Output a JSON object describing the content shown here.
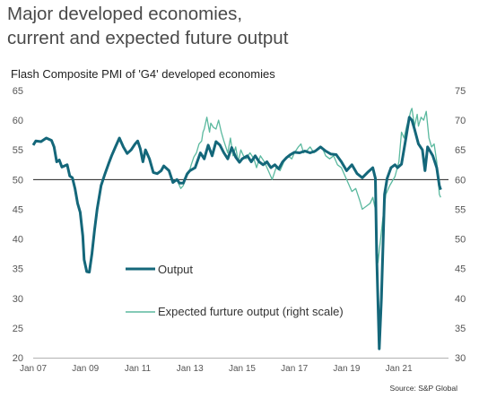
{
  "header": {
    "title_line1": "Major developed economies,",
    "title_line2": "current and expected future output"
  },
  "chart_data": {
    "type": "line",
    "title": "Flash Composite PMI of 'G4' developed economies",
    "source": "Source: S&P Global",
    "x_ticks": [
      "Jan 07",
      "Jan 09",
      "Jan 11",
      "Jan 13",
      "Jan 15",
      "Jan 17",
      "Jan 19",
      "Jan 21"
    ],
    "x_range": [
      2007.0,
      2022.9
    ],
    "left_axis": {
      "range": [
        20,
        65
      ],
      "ticks": [
        20,
        25,
        30,
        35,
        40,
        45,
        50,
        55,
        60,
        65
      ]
    },
    "right_axis": {
      "range": [
        30,
        75
      ],
      "ticks": [
        30,
        35,
        40,
        45,
        50,
        55,
        60,
        65,
        70,
        75
      ]
    },
    "reference_line": {
      "axis": "left",
      "value": 50
    },
    "colors": {
      "output": "#14677a",
      "expected": "#5bb99f",
      "reference": "#222222"
    },
    "series": [
      {
        "name": "Output",
        "axis": "left",
        "points": [
          [
            2007.0,
            55.8
          ],
          [
            2007.1,
            56.5
          ],
          [
            2007.3,
            56.4
          ],
          [
            2007.5,
            57.0
          ],
          [
            2007.7,
            56.6
          ],
          [
            2007.8,
            55.5
          ],
          [
            2007.9,
            53.0
          ],
          [
            2008.0,
            53.3
          ],
          [
            2008.1,
            52.1
          ],
          [
            2008.3,
            52.5
          ],
          [
            2008.4,
            50.6
          ],
          [
            2008.5,
            50.3
          ],
          [
            2008.6,
            48.5
          ],
          [
            2008.7,
            46.0
          ],
          [
            2008.8,
            44.5
          ],
          [
            2008.9,
            40.5
          ],
          [
            2008.95,
            36.5
          ],
          [
            2009.05,
            34.5
          ],
          [
            2009.15,
            34.4
          ],
          [
            2009.25,
            37.5
          ],
          [
            2009.35,
            41.5
          ],
          [
            2009.45,
            45.0
          ],
          [
            2009.6,
            49.0
          ],
          [
            2009.75,
            51.0
          ],
          [
            2009.9,
            52.8
          ],
          [
            2010.0,
            54.0
          ],
          [
            2010.15,
            55.5
          ],
          [
            2010.3,
            57.0
          ],
          [
            2010.45,
            55.5
          ],
          [
            2010.6,
            54.4
          ],
          [
            2010.75,
            55.0
          ],
          [
            2010.9,
            56.0
          ],
          [
            2011.0,
            56.5
          ],
          [
            2011.1,
            55.2
          ],
          [
            2011.2,
            53.0
          ],
          [
            2011.3,
            55.0
          ],
          [
            2011.45,
            53.5
          ],
          [
            2011.6,
            51.2
          ],
          [
            2011.75,
            51.0
          ],
          [
            2011.9,
            51.5
          ],
          [
            2012.0,
            52.3
          ],
          [
            2012.2,
            51.5
          ],
          [
            2012.35,
            49.5
          ],
          [
            2012.5,
            50.0
          ],
          [
            2012.6,
            49.4
          ],
          [
            2012.75,
            49.4
          ],
          [
            2012.9,
            51.0
          ],
          [
            2013.0,
            51.5
          ],
          [
            2013.2,
            52.0
          ],
          [
            2013.4,
            54.5
          ],
          [
            2013.55,
            53.5
          ],
          [
            2013.7,
            55.8
          ],
          [
            2013.85,
            54.0
          ],
          [
            2014.0,
            56.4
          ],
          [
            2014.15,
            55.8
          ],
          [
            2014.3,
            54.5
          ],
          [
            2014.45,
            53.5
          ],
          [
            2014.6,
            55.4
          ],
          [
            2014.75,
            53.8
          ],
          [
            2014.9,
            52.9
          ],
          [
            2015.0,
            53.5
          ],
          [
            2015.2,
            54.0
          ],
          [
            2015.35,
            53.0
          ],
          [
            2015.5,
            54.0
          ],
          [
            2015.65,
            53.0
          ],
          [
            2015.8,
            52.5
          ],
          [
            2015.95,
            53.0
          ],
          [
            2016.1,
            52.0
          ],
          [
            2016.25,
            52.5
          ],
          [
            2016.4,
            51.8
          ],
          [
            2016.55,
            53.0
          ],
          [
            2016.7,
            53.7
          ],
          [
            2016.85,
            54.2
          ],
          [
            2017.0,
            54.6
          ],
          [
            2017.2,
            54.5
          ],
          [
            2017.4,
            54.8
          ],
          [
            2017.6,
            54.5
          ],
          [
            2017.8,
            54.8
          ],
          [
            2018.0,
            55.5
          ],
          [
            2018.2,
            54.8
          ],
          [
            2018.4,
            54.3
          ],
          [
            2018.6,
            54.2
          ],
          [
            2018.8,
            53.0
          ],
          [
            2019.0,
            51.5
          ],
          [
            2019.2,
            52.5
          ],
          [
            2019.4,
            51.0
          ],
          [
            2019.6,
            50.3
          ],
          [
            2019.8,
            51.2
          ],
          [
            2020.0,
            52.0
          ],
          [
            2020.1,
            50.2
          ],
          [
            2020.15,
            37.5
          ],
          [
            2020.25,
            21.5
          ],
          [
            2020.33,
            30.0
          ],
          [
            2020.45,
            47.5
          ],
          [
            2020.55,
            50.2
          ],
          [
            2020.7,
            52.0
          ],
          [
            2020.85,
            52.5
          ],
          [
            2020.95,
            52.0
          ],
          [
            2021.1,
            52.6
          ],
          [
            2021.25,
            56.5
          ],
          [
            2021.4,
            60.5
          ],
          [
            2021.5,
            60.0
          ],
          [
            2021.6,
            58.5
          ],
          [
            2021.75,
            56.0
          ],
          [
            2021.9,
            55.0
          ],
          [
            2022.0,
            51.5
          ],
          [
            2022.1,
            55.5
          ],
          [
            2022.3,
            54.0
          ],
          [
            2022.45,
            52.0
          ],
          [
            2022.55,
            49.0
          ],
          [
            2022.6,
            48.3
          ]
        ]
      },
      {
        "name": "Expected furture output (right scale)",
        "axis": "right",
        "points": [
          [
            2012.55,
            59.5
          ],
          [
            2012.65,
            58.5
          ],
          [
            2012.75,
            59.0
          ],
          [
            2012.85,
            60.8
          ],
          [
            2012.95,
            61.0
          ],
          [
            2013.05,
            62.5
          ],
          [
            2013.15,
            63.8
          ],
          [
            2013.25,
            64.5
          ],
          [
            2013.35,
            66.0
          ],
          [
            2013.45,
            66.5
          ],
          [
            2013.5,
            68.0
          ],
          [
            2013.55,
            68.5
          ],
          [
            2013.65,
            70.5
          ],
          [
            2013.75,
            68.0
          ],
          [
            2013.8,
            69.5
          ],
          [
            2013.9,
            68.8
          ],
          [
            2014.0,
            68.5
          ],
          [
            2014.1,
            70.0
          ],
          [
            2014.2,
            68.0
          ],
          [
            2014.3,
            66.5
          ],
          [
            2014.45,
            64.5
          ],
          [
            2014.55,
            67.0
          ],
          [
            2014.65,
            64.0
          ],
          [
            2014.75,
            65.5
          ],
          [
            2014.85,
            63.0
          ],
          [
            2014.95,
            65.0
          ],
          [
            2015.05,
            64.0
          ],
          [
            2015.15,
            63.5
          ],
          [
            2015.3,
            64.5
          ],
          [
            2015.45,
            63.5
          ],
          [
            2015.55,
            62.0
          ],
          [
            2015.7,
            64.0
          ],
          [
            2015.85,
            63.0
          ],
          [
            2016.0,
            61.5
          ],
          [
            2016.15,
            60.0
          ],
          [
            2016.3,
            62.0
          ],
          [
            2016.45,
            61.5
          ],
          [
            2016.6,
            63.0
          ],
          [
            2016.75,
            64.0
          ],
          [
            2016.9,
            63.5
          ],
          [
            2017.0,
            64.5
          ],
          [
            2017.15,
            65.5
          ],
          [
            2017.25,
            66.0
          ],
          [
            2017.35,
            64.5
          ],
          [
            2017.5,
            65.0
          ],
          [
            2017.6,
            65.5
          ],
          [
            2017.75,
            64.5
          ],
          [
            2017.9,
            65.0
          ],
          [
            2018.05,
            65.5
          ],
          [
            2018.2,
            64.0
          ],
          [
            2018.35,
            63.5
          ],
          [
            2018.5,
            64.0
          ],
          [
            2018.65,
            62.5
          ],
          [
            2018.8,
            62.0
          ],
          [
            2019.0,
            60.0
          ],
          [
            2019.2,
            58.0
          ],
          [
            2019.35,
            58.5
          ],
          [
            2019.5,
            56.5
          ],
          [
            2019.6,
            55.0
          ],
          [
            2019.75,
            55.5
          ],
          [
            2019.9,
            56.0
          ],
          [
            2020.0,
            57.0
          ],
          [
            2020.1,
            55.0
          ],
          [
            2020.2,
            46.0
          ],
          [
            2020.3,
            50.0
          ],
          [
            2020.4,
            54.0
          ],
          [
            2020.5,
            57.5
          ],
          [
            2020.65,
            59.0
          ],
          [
            2020.85,
            60.5
          ],
          [
            2021.0,
            63.0
          ],
          [
            2021.1,
            68.0
          ],
          [
            2021.2,
            67.0
          ],
          [
            2021.3,
            69.0
          ],
          [
            2021.4,
            70.5
          ],
          [
            2021.45,
            71.5
          ],
          [
            2021.5,
            72.0
          ],
          [
            2021.6,
            69.0
          ],
          [
            2021.7,
            71.0
          ],
          [
            2021.75,
            69.0
          ],
          [
            2021.85,
            70.5
          ],
          [
            2021.95,
            70.0
          ],
          [
            2022.05,
            71.5
          ],
          [
            2022.15,
            67.0
          ],
          [
            2022.25,
            65.5
          ],
          [
            2022.35,
            66.0
          ],
          [
            2022.45,
            63.0
          ],
          [
            2022.55,
            57.5
          ],
          [
            2022.6,
            57.0
          ]
        ]
      }
    ],
    "legend": [
      {
        "label": "Output",
        "series": 0
      },
      {
        "label": "Expected furture output (right scale)",
        "series": 1
      }
    ]
  }
}
